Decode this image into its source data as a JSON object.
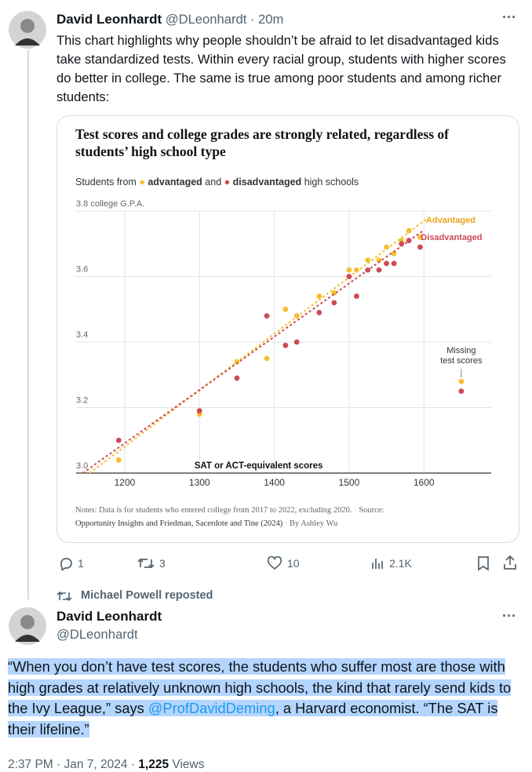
{
  "tweet": {
    "author": "David Leonhardt",
    "handle_time": "@DLeonhardt · 20m",
    "more": "···",
    "text": "This chart highlights why people shouldn’t be afraid to let disadvantaged kids take standardized tests. Within every racial group, students with higher scores do better in college. The same is true among poor students and among richer students:",
    "actions": {
      "replies": "1",
      "reposts": "3",
      "likes": "10",
      "views": "2.1K"
    }
  },
  "chart_data": {
    "type": "scatter",
    "title": "Test scores and college grades are strongly related, regardless of students’ high school type",
    "legend_text": [
      "Students from",
      "and",
      "high schools"
    ],
    "x_label": "SAT or ACT-equivalent scores",
    "xlim": [
      1135,
      1690
    ],
    "xticks": [
      1200,
      1300,
      1400,
      1500,
      1600
    ],
    "ylim": [
      3.0,
      3.8
    ],
    "yticks": [
      {
        "value": 3.0,
        "label": "3.0"
      },
      3.2,
      3.4,
      3.6,
      {
        "value": 3.8,
        "label": "3.8 college G.P.A."
      }
    ],
    "grid": true,
    "x": [
      1192,
      1300,
      1350,
      1390,
      1415,
      1430,
      1460,
      1480,
      1500,
      1510,
      1525,
      1540,
      1550,
      1560,
      1570,
      1580,
      1595
    ],
    "series": [
      {
        "name": "advantaged",
        "line_label": "Advantaged",
        "color": "#f5bf2e",
        "label_color": "#eaa51c",
        "values": [
          3.04,
          3.18,
          3.34,
          3.35,
          3.5,
          3.48,
          3.54,
          3.55,
          3.62,
          3.62,
          3.65,
          3.65,
          3.69,
          3.67,
          3.71,
          3.74,
          3.72
        ],
        "trend": {
          "x": [
            1153,
            1606
          ],
          "values": [
            3.0,
            3.78
          ]
        },
        "missing": 3.28
      },
      {
        "name": "disadvantaged",
        "line_label": "Disadvantaged",
        "color": "#cc4b55",
        "label_color": "#cc4b55",
        "values": [
          3.1,
          3.19,
          3.29,
          3.48,
          3.39,
          3.4,
          3.49,
          3.52,
          3.6,
          3.54,
          3.62,
          3.62,
          3.64,
          3.64,
          3.7,
          3.71,
          3.69
        ],
        "trend": {
          "x": [
            1144,
            1599
          ],
          "values": [
            3.0,
            3.74
          ]
        },
        "missing": 3.25
      }
    ],
    "missing_x": 1650,
    "missing_label": [
      "Missing",
      "test scores"
    ],
    "notes": "Notes: Data is for students who entered college from 2017 to 2022, excluding 2020.",
    "source_label": "Source:",
    "source": "Opportunity Insights and Friedman, Sacerdote and Tine (2024)",
    "byline": "By Ashley Wu"
  },
  "repost": "Michael Powell reposted",
  "tweet2": {
    "author": "David Leonhardt",
    "handle": "@DLeonhardt",
    "more": "···",
    "quote_before": "“When you don’t have test scores, the students who suffer most are those with high grades at relatively unknown high schools, the kind that rarely send kids to the Ivy League,” says ",
    "mention": "@ProfDavidDeming",
    "quote_after": ", a Harvard economist. “The SAT is their lifeline.”",
    "time": "2:37 PM · Jan 7, 2024 · ",
    "views_count": "1,225",
    "views_label": " Views"
  }
}
